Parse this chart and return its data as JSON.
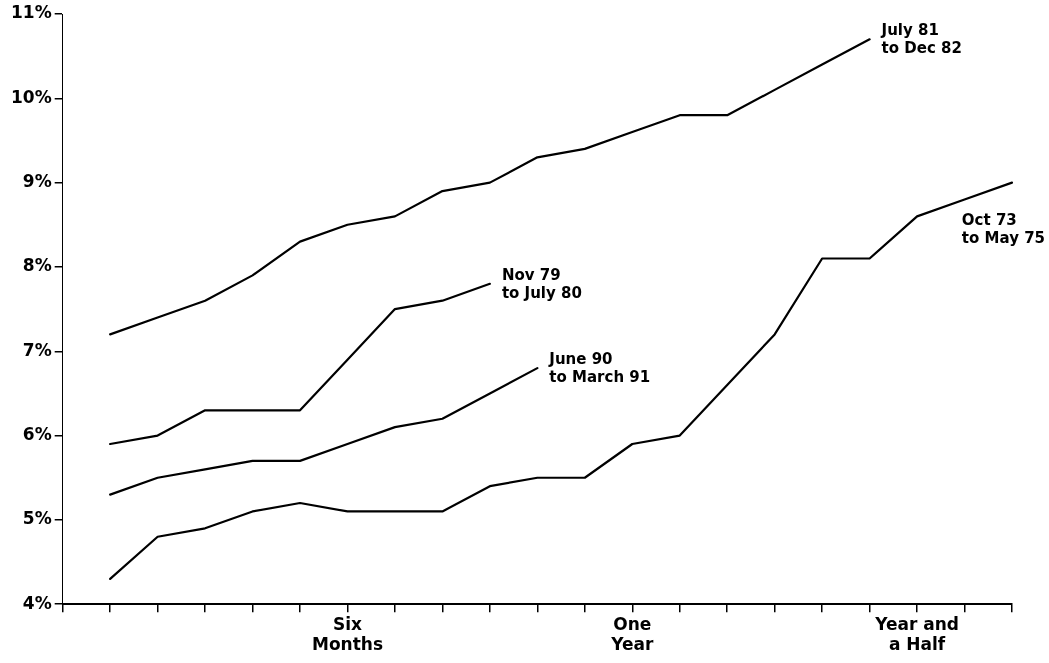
{
  "chart_data": {
    "type": "line",
    "categories": [
      null,
      null,
      null,
      null,
      null,
      null,
      "Six\nMonths",
      null,
      null,
      null,
      null,
      null,
      "One\nYear",
      null,
      null,
      null,
      null,
      null,
      "Year and\na Half",
      null,
      null
    ],
    "ylim": [
      4,
      11
    ],
    "yticks": [
      {
        "value": 4,
        "label": "4%"
      },
      {
        "value": 5,
        "label": "5%"
      },
      {
        "value": 6,
        "label": "6%"
      },
      {
        "value": 7,
        "label": "7%"
      },
      {
        "value": 8,
        "label": "8%"
      },
      {
        "value": 9,
        "label": "9%"
      },
      {
        "value": 10,
        "label": "10%"
      },
      {
        "value": 11,
        "label": "11%"
      }
    ],
    "series": [
      {
        "name": "July 81\nto Dec 82",
        "color": "#000000",
        "values": [
          null,
          7.2,
          7.4,
          7.6,
          7.9,
          8.3,
          8.5,
          8.6,
          8.9,
          9.0,
          9.3,
          9.4,
          9.6,
          9.8,
          9.8,
          10.1,
          10.4,
          10.7,
          null,
          null,
          null
        ]
      },
      {
        "name": "Nov 79\nto July 80",
        "color": "#000000",
        "values": [
          null,
          5.9,
          6.0,
          6.3,
          6.3,
          6.3,
          6.9,
          7.5,
          7.6,
          7.8,
          null,
          null,
          null,
          null,
          null,
          null,
          null,
          null,
          null,
          null,
          null
        ]
      },
      {
        "name": "June 90\nto March 91",
        "color": "#000000",
        "values": [
          null,
          5.3,
          5.5,
          5.6,
          5.7,
          5.7,
          5.9,
          6.1,
          6.2,
          6.5,
          6.8,
          null,
          null,
          null,
          null,
          null,
          null,
          null,
          null,
          null,
          null
        ]
      },
      {
        "name": "Oct 73\nto May 75",
        "color": "#000000",
        "values": [
          null,
          4.3,
          4.8,
          4.9,
          5.1,
          5.2,
          5.1,
          5.1,
          5.1,
          5.4,
          5.5,
          5.5,
          5.9,
          6.0,
          6.6,
          7.2,
          8.1,
          8.1,
          8.6,
          8.8,
          9.0
        ]
      }
    ],
    "grid": false,
    "legend": false,
    "marker": "none",
    "line_style": "solid"
  }
}
